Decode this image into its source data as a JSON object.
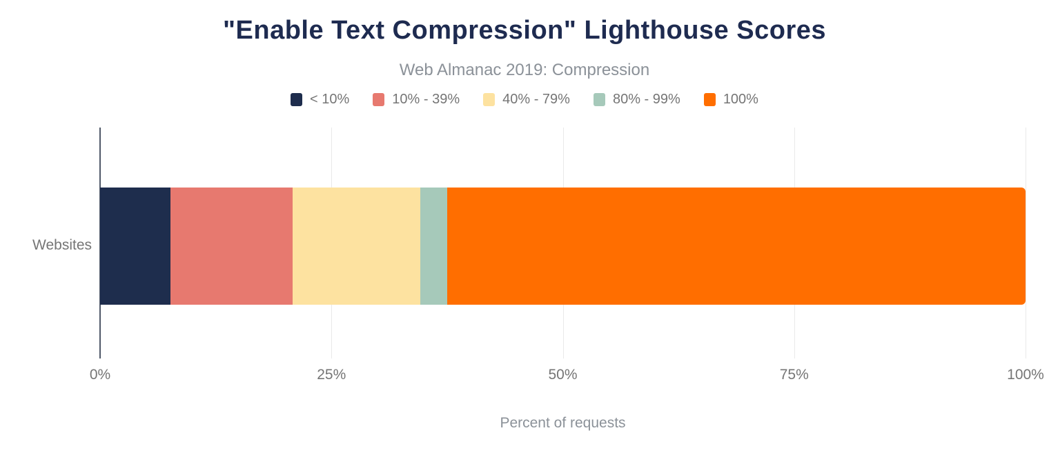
{
  "title": "\"Enable Text Compression\" Lighthouse Scores",
  "subtitle": "Web Almanac 2019: Compression",
  "y_category": "Websites",
  "x_axis_title": "Percent of requests",
  "colors": {
    "title_text": "#1e2b50",
    "subtitle_text": "#8b9198",
    "label_gray": "#757575",
    "axis_line": "#4f5868",
    "gridline": "#e9e9e9"
  },
  "chart_data": {
    "type": "bar",
    "orientation": "horizontal",
    "stacked": true,
    "title": "\"Enable Text Compression\" Lighthouse Scores",
    "subtitle": "Web Almanac 2019: Compression",
    "xlabel": "Percent of requests",
    "ylabel": "",
    "categories": [
      "Websites"
    ],
    "series": [
      {
        "name": "< 10%",
        "color": "#1e2d4d",
        "values": [
          7.6
        ]
      },
      {
        "name": "10% - 39%",
        "color": "#e7796f",
        "values": [
          13.2
        ]
      },
      {
        "name": "40% - 79%",
        "color": "#fde2a0",
        "values": [
          13.8
        ]
      },
      {
        "name": "80% - 99%",
        "color": "#a6c9ba",
        "values": [
          2.9
        ]
      },
      {
        "name": "100%",
        "color": "#ff6e00",
        "values": [
          62.5
        ]
      }
    ],
    "xlim": [
      0,
      100
    ],
    "x_ticks": [
      "0%",
      "25%",
      "50%",
      "75%",
      "100%"
    ],
    "x_tick_values": [
      0,
      25,
      50,
      75,
      100
    ],
    "grid": true,
    "legend_position": "top"
  }
}
